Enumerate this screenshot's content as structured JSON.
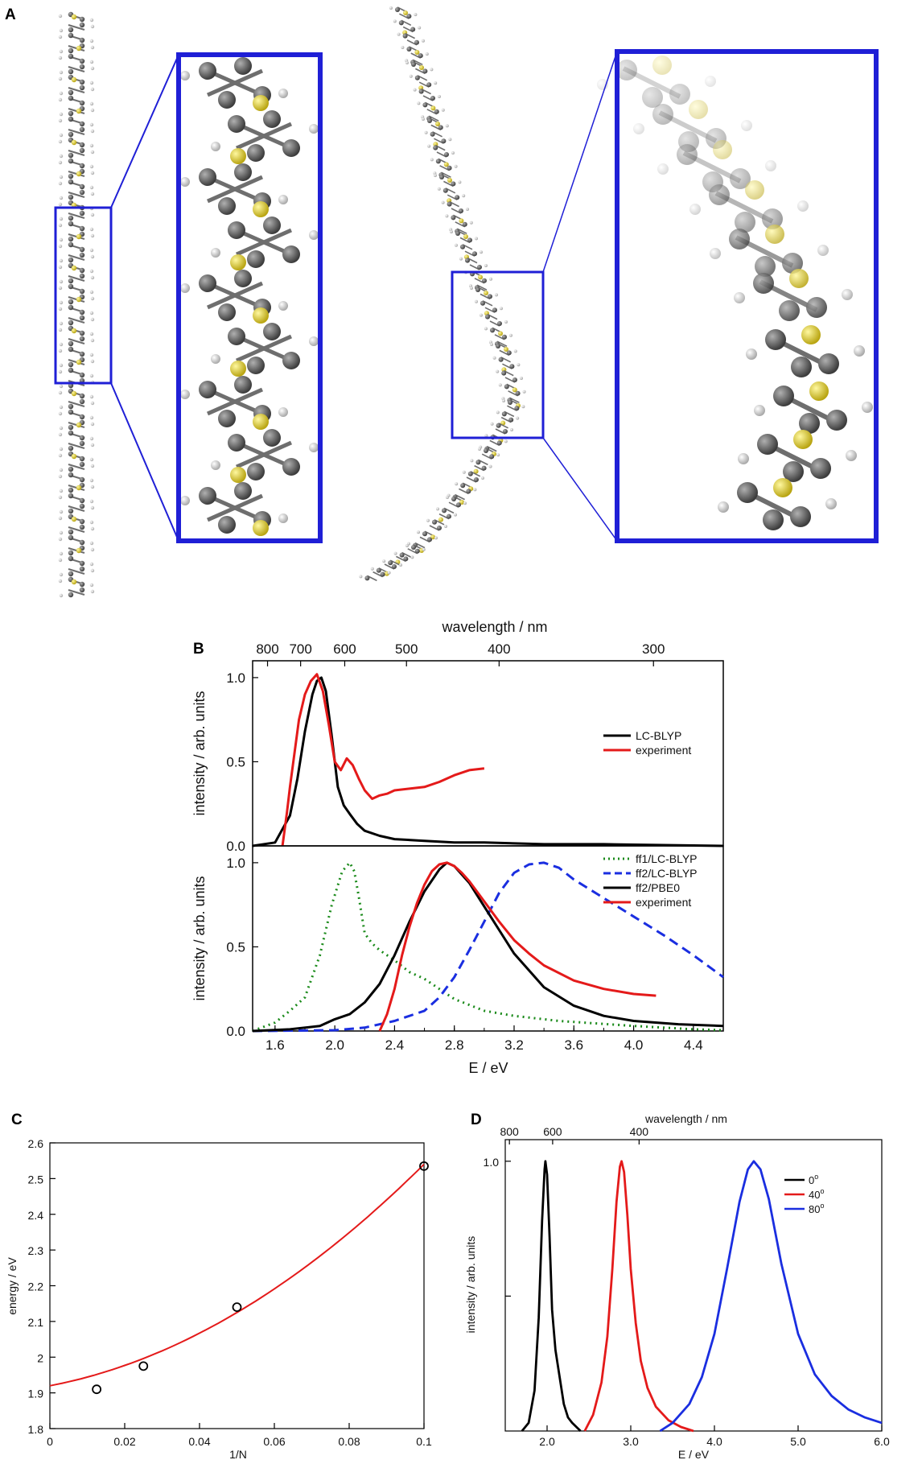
{
  "panels": {
    "a": "A",
    "b": "B",
    "c": "C",
    "d": "D"
  },
  "colors": {
    "zoom_box": "#1f1fd6",
    "carbon": "#5a5a5a",
    "sulfur": "#e3d23b",
    "hydrogen": "#e6e6e6",
    "black": "#000000",
    "red": "#e41a1a",
    "green": "#1a8a1a",
    "blue": "#1a2ee0"
  },
  "chart_data": [
    {
      "id": "B-top",
      "type": "line",
      "xlabel": "E / eV",
      "ylabel": "intensity / arb. units",
      "top_axis_label": "wavelength / nm",
      "top_axis_ticks": [
        "800",
        "700",
        "600",
        "500",
        "400",
        "300"
      ],
      "top_axis_values_nm": [
        800,
        700,
        600,
        500,
        400,
        300
      ],
      "xlim": [
        1.45,
        4.6
      ],
      "ylim": [
        0,
        1.1
      ],
      "yticks": [
        "0.0",
        "0.5",
        "1.0"
      ],
      "ytick_values": [
        0,
        0.5,
        1.0
      ],
      "legend_position": "right",
      "series": [
        {
          "name": "LC-BLYP",
          "color": "#000000",
          "style": "solid",
          "x": [
            1.45,
            1.6,
            1.7,
            1.75,
            1.8,
            1.85,
            1.88,
            1.91,
            1.94,
            1.98,
            2.02,
            2.06,
            2.1,
            2.15,
            2.2,
            2.3,
            2.4,
            2.6,
            2.8,
            3.0,
            3.4,
            3.8,
            4.2,
            4.6
          ],
          "y": [
            0.0,
            0.02,
            0.18,
            0.4,
            0.68,
            0.9,
            0.98,
            1.0,
            0.92,
            0.65,
            0.35,
            0.24,
            0.19,
            0.13,
            0.09,
            0.06,
            0.04,
            0.03,
            0.02,
            0.02,
            0.01,
            0.01,
            0.005,
            0.0
          ]
        },
        {
          "name": "experiment",
          "color": "#e41a1a",
          "style": "solid",
          "x": [
            1.65,
            1.68,
            1.7,
            1.73,
            1.76,
            1.8,
            1.84,
            1.88,
            1.92,
            1.96,
            2.0,
            2.04,
            2.08,
            2.12,
            2.16,
            2.2,
            2.25,
            2.3,
            2.35,
            2.4,
            2.5,
            2.6,
            2.7,
            2.8,
            2.9,
            3.0
          ],
          "y": [
            0.0,
            0.2,
            0.35,
            0.55,
            0.75,
            0.9,
            0.98,
            1.02,
            0.92,
            0.72,
            0.5,
            0.45,
            0.52,
            0.48,
            0.4,
            0.33,
            0.28,
            0.3,
            0.31,
            0.33,
            0.34,
            0.35,
            0.38,
            0.42,
            0.45,
            0.46
          ]
        }
      ]
    },
    {
      "id": "B-bottom",
      "type": "line",
      "xlabel": "E / eV",
      "ylabel": "intensity / arb. units",
      "xlim": [
        1.45,
        4.6
      ],
      "ylim": [
        0,
        1.1
      ],
      "xticks": [
        "1.6",
        "2.0",
        "2.4",
        "2.8",
        "3.2",
        "3.6",
        "4.0",
        "4.4"
      ],
      "xtick_values": [
        1.6,
        2.0,
        2.4,
        2.8,
        3.2,
        3.6,
        4.0,
        4.4
      ],
      "yticks": [
        "0.0",
        "0.5",
        "1.0"
      ],
      "ytick_values": [
        0,
        0.5,
        1.0
      ],
      "legend_position": "top-right",
      "series": [
        {
          "name": "ff1/LC-BLYP",
          "color": "#1a8a1a",
          "style": "dotted",
          "x": [
            1.45,
            1.6,
            1.7,
            1.8,
            1.9,
            1.98,
            2.05,
            2.1,
            2.13,
            2.16,
            2.2,
            2.25,
            2.3,
            2.4,
            2.5,
            2.6,
            2.7,
            2.8,
            3.0,
            3.2,
            3.5,
            4.0,
            4.4,
            4.6
          ],
          "y": [
            0.0,
            0.05,
            0.12,
            0.2,
            0.45,
            0.75,
            0.95,
            1.0,
            0.95,
            0.8,
            0.58,
            0.52,
            0.48,
            0.42,
            0.35,
            0.31,
            0.25,
            0.19,
            0.12,
            0.09,
            0.06,
            0.03,
            0.01,
            0.005
          ]
        },
        {
          "name": "ff2/LC-BLYP",
          "color": "#1a2ee0",
          "style": "dashed",
          "x": [
            1.45,
            2.0,
            2.2,
            2.4,
            2.6,
            2.7,
            2.8,
            2.9,
            3.0,
            3.1,
            3.2,
            3.3,
            3.4,
            3.5,
            3.6,
            3.8,
            4.0,
            4.2,
            4.4,
            4.6
          ],
          "y": [
            0.0,
            0.005,
            0.02,
            0.06,
            0.12,
            0.2,
            0.32,
            0.48,
            0.65,
            0.82,
            0.94,
            0.99,
            1.0,
            0.97,
            0.9,
            0.79,
            0.68,
            0.57,
            0.45,
            0.32
          ]
        },
        {
          "name": "ff2/PBE0",
          "color": "#000000",
          "style": "solid",
          "x": [
            1.45,
            1.7,
            1.9,
            2.0,
            2.1,
            2.2,
            2.3,
            2.4,
            2.5,
            2.6,
            2.7,
            2.75,
            2.8,
            2.9,
            3.0,
            3.1,
            3.2,
            3.4,
            3.6,
            3.8,
            4.0,
            4.3,
            4.6
          ],
          "y": [
            0.0,
            0.01,
            0.03,
            0.07,
            0.1,
            0.17,
            0.28,
            0.45,
            0.65,
            0.83,
            0.96,
            1.0,
            0.98,
            0.88,
            0.74,
            0.6,
            0.46,
            0.26,
            0.15,
            0.09,
            0.06,
            0.04,
            0.03
          ]
        },
        {
          "name": "experiment",
          "color": "#e41a1a",
          "style": "solid",
          "x": [
            2.3,
            2.35,
            2.4,
            2.45,
            2.5,
            2.55,
            2.6,
            2.65,
            2.7,
            2.75,
            2.8,
            2.85,
            2.9,
            3.0,
            3.1,
            3.2,
            3.3,
            3.4,
            3.6,
            3.8,
            4.0,
            4.15
          ],
          "y": [
            0.0,
            0.1,
            0.25,
            0.45,
            0.62,
            0.76,
            0.87,
            0.95,
            0.99,
            1.0,
            0.98,
            0.94,
            0.89,
            0.77,
            0.65,
            0.54,
            0.46,
            0.39,
            0.3,
            0.25,
            0.22,
            0.21
          ]
        }
      ]
    },
    {
      "id": "C",
      "type": "scatter",
      "xlabel": "1/N",
      "ylabel": "energy / eV",
      "xlim": [
        0,
        0.1
      ],
      "ylim": [
        1.8,
        2.6
      ],
      "xticks": [
        "0",
        "0.02",
        "0.04",
        "0.06",
        "0.08",
        "0.1"
      ],
      "xtick_values": [
        0,
        0.02,
        0.04,
        0.06,
        0.08,
        0.1
      ],
      "yticks": [
        "1.8",
        "1.9",
        "2",
        "2.1",
        "2.2",
        "2.3",
        "2.4",
        "2.5",
        "2.6"
      ],
      "ytick_values": [
        1.8,
        1.9,
        2.0,
        2.1,
        2.2,
        2.3,
        2.4,
        2.5,
        2.6
      ],
      "points": {
        "x": [
          0.0125,
          0.025,
          0.05,
          0.1
        ],
        "y": [
          1.91,
          1.975,
          2.14,
          2.535
        ]
      },
      "fit": {
        "color": "#e41a1a",
        "coef": [
          1.92,
          2.0,
          42.0
        ],
        "form": "y = a + b*x + c*x^2"
      }
    },
    {
      "id": "D",
      "type": "line",
      "xlabel": "E / eV",
      "ylabel": "intensity / arb. units",
      "top_axis_label": "wavelength / nm",
      "top_axis_ticks": [
        "800",
        "600",
        "400"
      ],
      "top_axis_values_nm": [
        800,
        600,
        400
      ],
      "xlim": [
        1.5,
        6.0
      ],
      "ylim": [
        0,
        1.08
      ],
      "xticks": [
        "2.0",
        "3.0",
        "4.0",
        "5.0",
        "6.0"
      ],
      "xtick_values": [
        2.0,
        3.0,
        4.0,
        5.0,
        6.0
      ],
      "yticks": [
        "1.0"
      ],
      "ytick_values": [
        1.0
      ],
      "legend_position": "top-right",
      "series": [
        {
          "name": "0°",
          "legend_base": "0",
          "legend_sup": "o",
          "color": "#000000",
          "x": [
            1.7,
            1.78,
            1.85,
            1.9,
            1.94,
            1.97,
            1.98,
            2.0,
            2.03,
            2.06,
            2.1,
            2.15,
            2.2,
            2.25,
            2.3,
            2.4
          ],
          "y": [
            0.0,
            0.03,
            0.15,
            0.42,
            0.78,
            0.97,
            1.0,
            0.95,
            0.72,
            0.45,
            0.3,
            0.2,
            0.1,
            0.05,
            0.03,
            0.0
          ]
        },
        {
          "name": "40°",
          "legend_base": "40",
          "legend_sup": "o",
          "color": "#e41a1a",
          "x": [
            2.45,
            2.55,
            2.65,
            2.72,
            2.78,
            2.83,
            2.87,
            2.89,
            2.92,
            2.96,
            3.0,
            3.06,
            3.12,
            3.2,
            3.3,
            3.45,
            3.6,
            3.75
          ],
          "y": [
            0.0,
            0.06,
            0.18,
            0.35,
            0.6,
            0.85,
            0.98,
            1.0,
            0.96,
            0.8,
            0.6,
            0.4,
            0.26,
            0.16,
            0.09,
            0.04,
            0.015,
            0.0
          ]
        },
        {
          "name": "80°",
          "legend_base": "80",
          "legend_sup": "o",
          "color": "#1a2ee0",
          "x": [
            3.35,
            3.5,
            3.7,
            3.85,
            4.0,
            4.15,
            4.3,
            4.4,
            4.47,
            4.55,
            4.65,
            4.8,
            5.0,
            5.2,
            5.4,
            5.6,
            5.8,
            6.0
          ],
          "y": [
            0.0,
            0.03,
            0.1,
            0.2,
            0.36,
            0.6,
            0.85,
            0.97,
            1.0,
            0.97,
            0.86,
            0.62,
            0.36,
            0.21,
            0.13,
            0.08,
            0.05,
            0.03
          ]
        }
      ]
    }
  ]
}
